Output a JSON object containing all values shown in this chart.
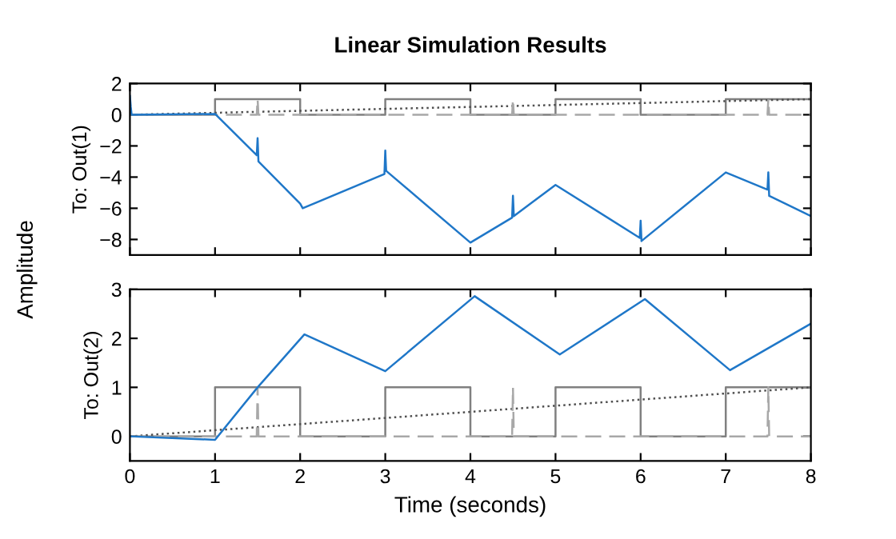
{
  "chart_data": [
    {
      "type": "line",
      "title": "Linear Simulation Results",
      "ylabel": "To: Out(1)",
      "annotations": [
        "Amplitude"
      ],
      "tick_labels": "y",
      "xlim": [
        0,
        8
      ],
      "ylim": [
        -9,
        2
      ],
      "yticks": [
        -8,
        -6,
        -4,
        -2,
        0,
        2
      ],
      "grid": false,
      "series": [
        {
          "color": "#808080",
          "line_style": "solid",
          "x": [
            0,
            1,
            1,
            2,
            2,
            3,
            3,
            4,
            4,
            5,
            5,
            6,
            6,
            7,
            7,
            8
          ],
          "values": [
            0,
            0,
            1,
            1,
            0,
            0,
            1,
            1,
            0,
            0,
            1,
            1,
            0,
            0,
            1,
            1
          ]
        },
        {
          "color": "#505050",
          "line_style": "dotted",
          "x": [
            0,
            8
          ],
          "values": [
            0,
            1
          ]
        },
        {
          "color": "#a8a8a8",
          "line_style": "dashed",
          "x": [
            0,
            1.49,
            1.5,
            1.51,
            4.49,
            4.5,
            4.51,
            7.49,
            7.5,
            7.51,
            8
          ],
          "values": [
            0,
            0,
            1,
            0,
            0,
            1,
            0,
            0,
            1,
            0,
            0
          ]
        },
        {
          "color": "#1f77c8",
          "line_style": "solid",
          "x": [
            0,
            0.01,
            0.02,
            1,
            1.49,
            1.5,
            1.51,
            2,
            2.03,
            2.99,
            3,
            3.01,
            4,
            4.49,
            4.5,
            4.51,
            5,
            5.99,
            6,
            6.01,
            7,
            7.49,
            7.5,
            7.51,
            8
          ],
          "values": [
            1.2,
            0.5,
            0,
            0.05,
            -2.6,
            -1.5,
            -3.0,
            -5.7,
            -6.0,
            -3.8,
            -2.3,
            -3.6,
            -8.2,
            -6.6,
            -5.2,
            -6.5,
            -4.5,
            -7.9,
            -6.8,
            -8.1,
            -3.7,
            -4.8,
            -3.7,
            -5.2,
            -6.5
          ]
        }
      ]
    },
    {
      "type": "line",
      "ylabel": "To: Out(2)",
      "xlabel": "Time (seconds)",
      "xlim": [
        0,
        8
      ],
      "xticks": [
        0,
        1,
        2,
        3,
        4,
        5,
        6,
        7,
        8
      ],
      "ylim": [
        -0.5,
        3
      ],
      "yticks": [
        0,
        1,
        2,
        3
      ],
      "grid": false,
      "series": [
        {
          "color": "#808080",
          "line_style": "solid",
          "x": [
            0,
            1,
            1,
            2,
            2,
            3,
            3,
            4,
            4,
            5,
            5,
            6,
            6,
            7,
            7,
            8
          ],
          "values": [
            0,
            0,
            1,
            1,
            0,
            0,
            1,
            1,
            0,
            0,
            1,
            1,
            0,
            0,
            1,
            1
          ]
        },
        {
          "color": "#505050",
          "line_style": "dotted",
          "x": [
            0,
            8
          ],
          "values": [
            0,
            1
          ]
        },
        {
          "color": "#a8a8a8",
          "line_style": "dashed",
          "x": [
            0,
            1.49,
            1.5,
            1.51,
            4.49,
            4.5,
            4.51,
            7.49,
            7.5,
            7.51,
            8
          ],
          "values": [
            0,
            0,
            1,
            0,
            0,
            1,
            0,
            0,
            1,
            0,
            0
          ]
        },
        {
          "color": "#1f77c8",
          "line_style": "solid",
          "x": [
            0,
            1,
            1.5,
            2.05,
            3,
            4.05,
            5.05,
            6.05,
            7.05,
            8
          ],
          "values": [
            0,
            -0.07,
            1.0,
            2.08,
            1.33,
            2.86,
            1.67,
            2.8,
            1.35,
            2.3
          ]
        }
      ]
    }
  ]
}
